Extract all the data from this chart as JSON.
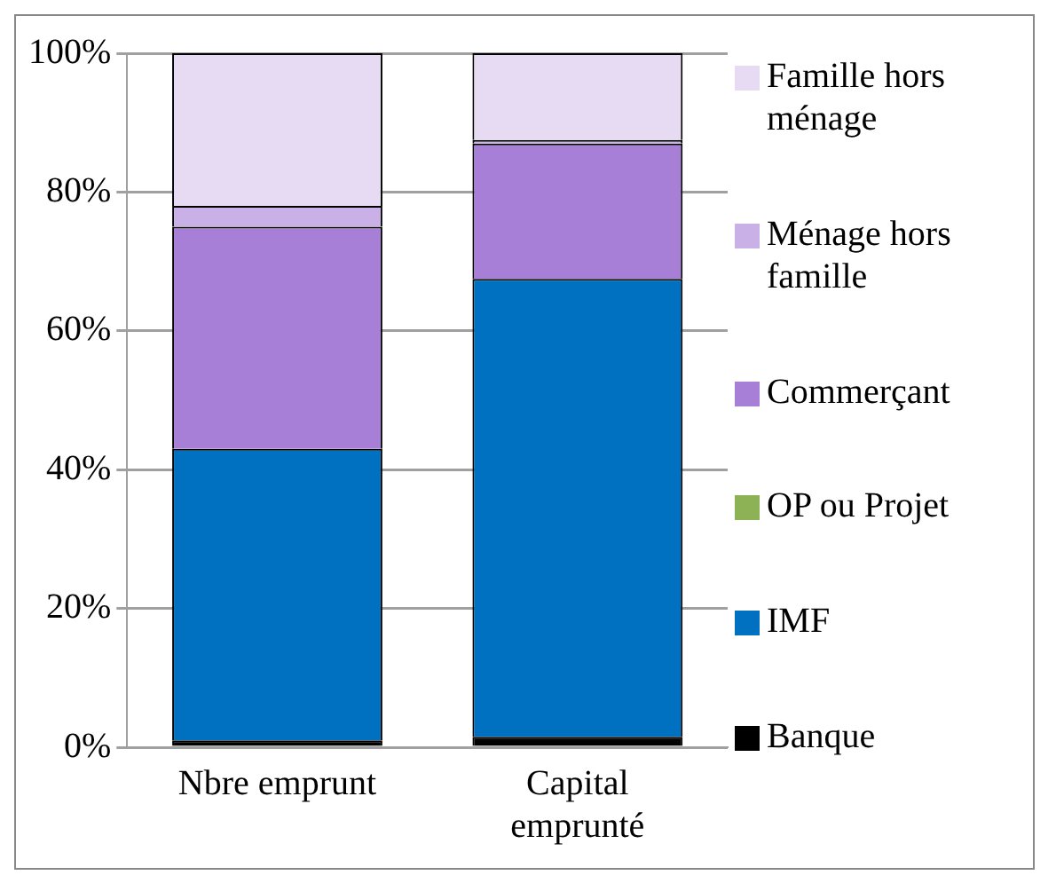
{
  "chart_data": {
    "type": "bar",
    "stacked": true,
    "categories": [
      "Nbre emprunt",
      "Capital emprunté"
    ],
    "series": [
      {
        "name": "Banque",
        "color": "#000000",
        "values": [
          1,
          1.5
        ]
      },
      {
        "name": "IMF",
        "color": "#0070c0",
        "values": [
          42,
          66
        ]
      },
      {
        "name": "OP ou Projet",
        "color": "#8db255",
        "values": [
          0,
          0
        ]
      },
      {
        "name": "Commerçant",
        "color": "#a77fd6",
        "values": [
          32,
          19.5
        ]
      },
      {
        "name": "Ménage hors famille",
        "color": "#c9b0e6",
        "values": [
          3,
          0.5
        ]
      },
      {
        "name": "Famille hors ménage",
        "color": "#e6dbf3",
        "values": [
          22,
          12.5
        ]
      }
    ],
    "ylim": [
      0,
      100
    ],
    "yticks": [
      {
        "value": 0,
        "label": "0%"
      },
      {
        "value": 20,
        "label": "20%"
      },
      {
        "value": 40,
        "label": "40%"
      },
      {
        "value": 60,
        "label": "60%"
      },
      {
        "value": 80,
        "label": "80%"
      },
      {
        "value": 100,
        "label": "100%"
      }
    ],
    "grid": "y",
    "legend": "right"
  }
}
